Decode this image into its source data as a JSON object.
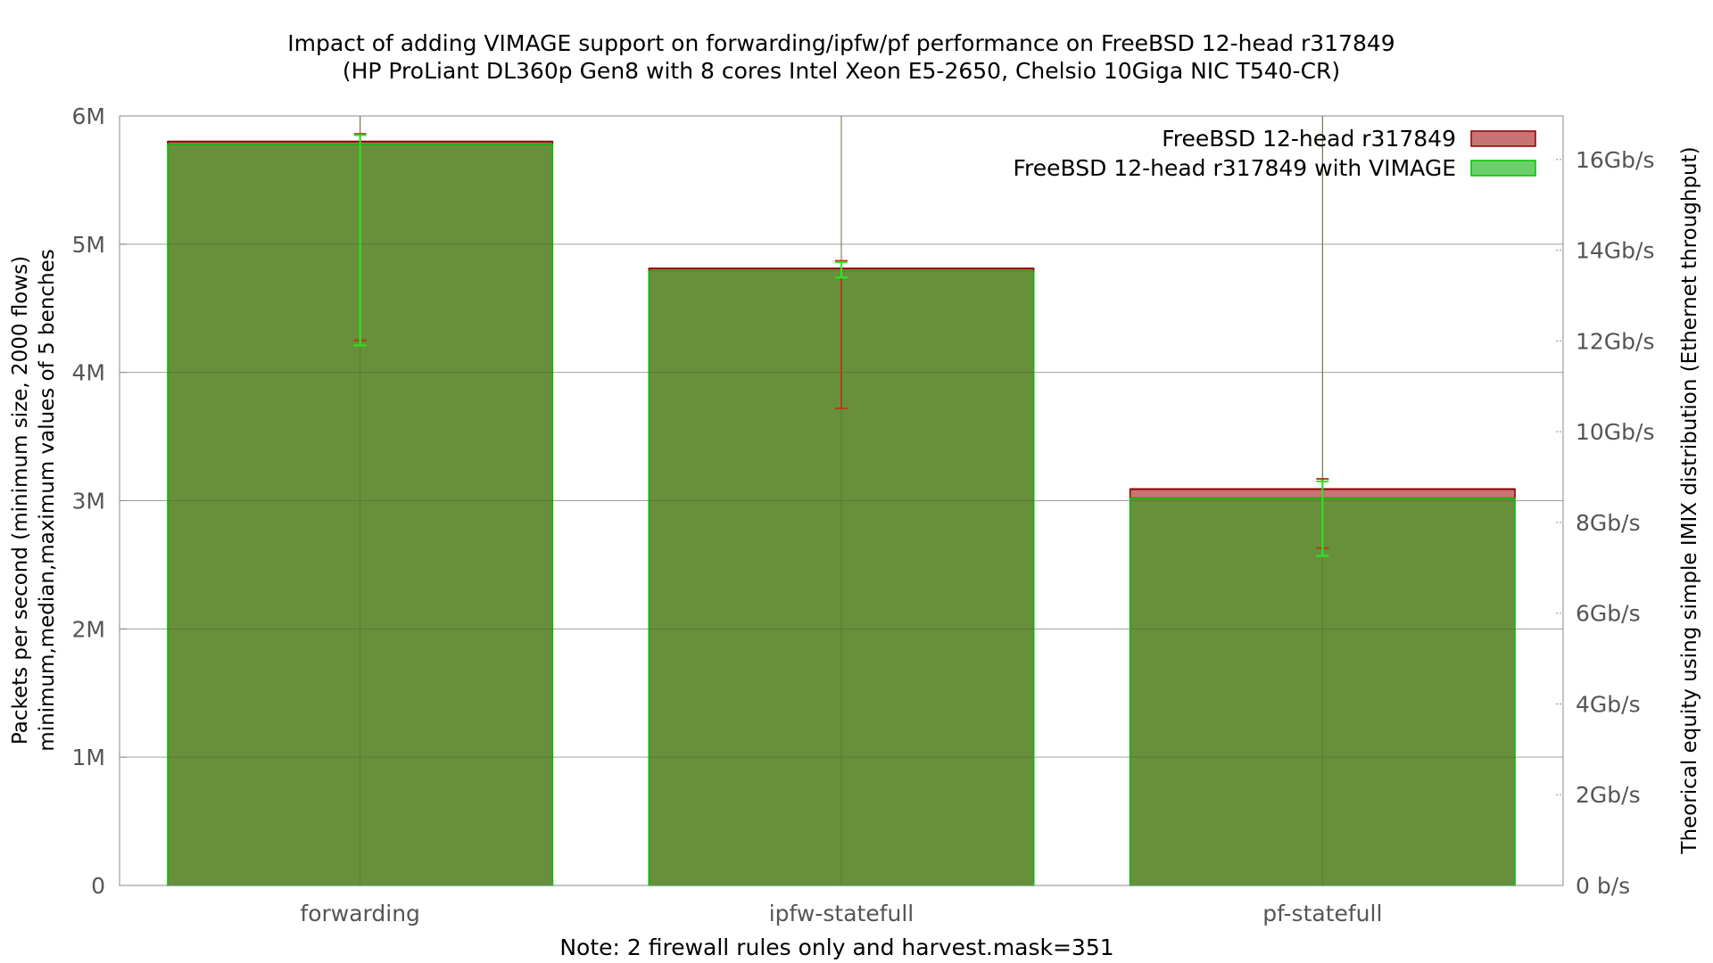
{
  "chart_data": {
    "type": "bar",
    "title": "Impact of adding VIMAGE support on forwarding/ipfw/pf performance on FreeBSD 12-head r317849",
    "subtitle": "(HP ProLiant DL360p Gen8 with 8 cores Intel Xeon E5-2650, Chelsio 10Giga NIC T540-CR)",
    "xlabel": "Note: 2 firewall rules only and harvest.mask=351",
    "ylabel": [
      "Packets per second (minimum size, 2000 flows)",
      "minimum,median,maximum values of 5 benches"
    ],
    "y2label": "Theorical equity using simple IMIX distribution (Ethernet throughput)",
    "categories": [
      "forwarding",
      "ipfw-statefull",
      "pf-statefull"
    ],
    "ylim": [
      0,
      6000000
    ],
    "yticks": [
      {
        "value": 0,
        "label": "0"
      },
      {
        "value": 1000000,
        "label": "1M"
      },
      {
        "value": 2000000,
        "label": "2M"
      },
      {
        "value": 3000000,
        "label": "3M"
      },
      {
        "value": 4000000,
        "label": "4M"
      },
      {
        "value": 5000000,
        "label": "5M"
      },
      {
        "value": 6000000,
        "label": "6M"
      }
    ],
    "y2ticks": [
      {
        "value": 0,
        "label": "0 b/s"
      },
      {
        "value": 2,
        "label": "2Gb/s"
      },
      {
        "value": 4,
        "label": "4Gb/s"
      },
      {
        "value": 6,
        "label": "6Gb/s"
      },
      {
        "value": 8,
        "label": "8Gb/s"
      },
      {
        "value": 10,
        "label": "10Gb/s"
      },
      {
        "value": 12,
        "label": "12Gb/s"
      },
      {
        "value": 14,
        "label": "14Gb/s"
      },
      {
        "value": 16,
        "label": "16Gb/s"
      }
    ],
    "y2lim": [
      0,
      16.96
    ],
    "grid": true,
    "legend_position": "top-right",
    "series": [
      {
        "name": "FreeBSD 12-head r317849",
        "fill": "#c87474",
        "stroke": "#8b0000",
        "median": [
          5800000,
          4810000,
          3090000
        ],
        "min": [
          4250000,
          3720000,
          2630000
        ],
        "max": [
          5860000,
          4870000,
          3170000
        ]
      },
      {
        "name": "FreeBSD 12-head r317849  with VIMAGE",
        "fill": "#6bd06b",
        "stroke": "#00c000",
        "median": [
          5780000,
          4790000,
          3020000
        ],
        "min": [
          4210000,
          4740000,
          2570000
        ],
        "max": [
          5850000,
          4860000,
          3150000
        ]
      }
    ],
    "overlap_color": "#688f3b"
  }
}
